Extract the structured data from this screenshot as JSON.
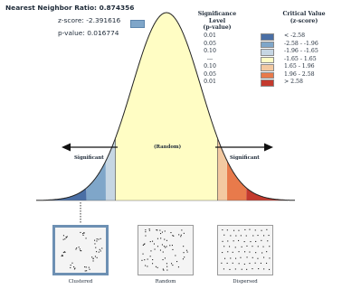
{
  "stats": [
    {
      "label": "Nearest Neighbor Ratio:",
      "value": "0.874356"
    },
    {
      "label": "z-score:",
      "value": "-2.391616"
    },
    {
      "label": "p-value:",
      "value": "0.016774"
    }
  ],
  "legend": {
    "p_header": "Significance Level\n(p-value)",
    "z_header": "Critical Value\n(z-score)",
    "rows": [
      {
        "p": "0.01",
        "z": "< -2.58",
        "color": "#4a6fa5"
      },
      {
        "p": "0.05",
        "z": "-2.58 - -1.96",
        "color": "#7fa6c9"
      },
      {
        "p": "0.10",
        "z": "-1.96 - -1.65",
        "color": "#c6d6e3"
      },
      {
        "p": "---",
        "z": "-1.65 - 1.65",
        "color": "#fffdc4"
      },
      {
        "p": "0.10",
        "z": "1.65 - 1.96",
        "color": "#f3c9a1"
      },
      {
        "p": "0.05",
        "z": "1.96 - 2.58",
        "color": "#e87a4b"
      },
      {
        "p": "0.01",
        "z": "> 2.58",
        "color": "#c43a2e"
      }
    ]
  },
  "curve_labels": {
    "left": "Significant",
    "center": "(Random)",
    "right": "Significant"
  },
  "panels": [
    {
      "label": "Clustered",
      "selected": true
    },
    {
      "label": "Random",
      "selected": false
    },
    {
      "label": "Dispersed",
      "selected": false
    }
  ]
}
